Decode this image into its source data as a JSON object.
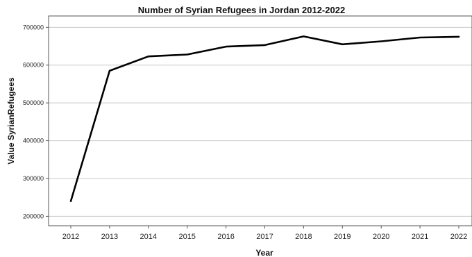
{
  "chart_data": {
    "type": "line",
    "title": "Number of Syrian Refugees in Jordan 2012-2022",
    "xlabel": "Year",
    "ylabel": "Value SyrianRefugees",
    "x": [
      "2012",
      "2013",
      "2014",
      "2015",
      "2016",
      "2017",
      "2018",
      "2019",
      "2020",
      "2021",
      "2022"
    ],
    "series": [
      {
        "values": [
          240000,
          585000,
          623000,
          628000,
          649000,
          653000,
          676000,
          655000,
          663000,
          673000,
          675000
        ]
      }
    ],
    "yticks": [
      "200000",
      "300000",
      "400000",
      "500000",
      "600000",
      "700000"
    ],
    "ylim": [
      175000,
      730000
    ],
    "grid": true,
    "line_color": "#000000"
  }
}
